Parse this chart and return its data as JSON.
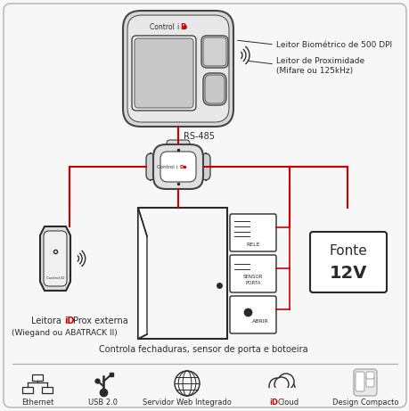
{
  "bg_color": "#f7f7f7",
  "border_color": "#bbbbbb",
  "red_color": "#cc0000",
  "dark_color": "#2a2a2a",
  "gray_color": "#888888",
  "light_gray": "#aaaaaa",
  "label_biometric": "Leitor Biométrico de 500 DPI",
  "label_proximity": "Leitor de Proximidade\n(Mifare ou 125kHz)",
  "label_rs485": "RS-485",
  "label_rele": "RELÉ",
  "label_sensor": "SENSOR\nPORTA",
  "label_abrir": "ABRIR",
  "label_fonte_title": "Fonte",
  "label_fonte_val": "12V",
  "label_controla": "Controla fechaduras, sensor de porta e botoeira",
  "label_ethernet": "Ethernet",
  "label_usb": "USB 2.0",
  "label_servidor": "Servidor Web Integrado",
  "label_idcloud": "iDCloud",
  "label_design": "Design Compacto"
}
